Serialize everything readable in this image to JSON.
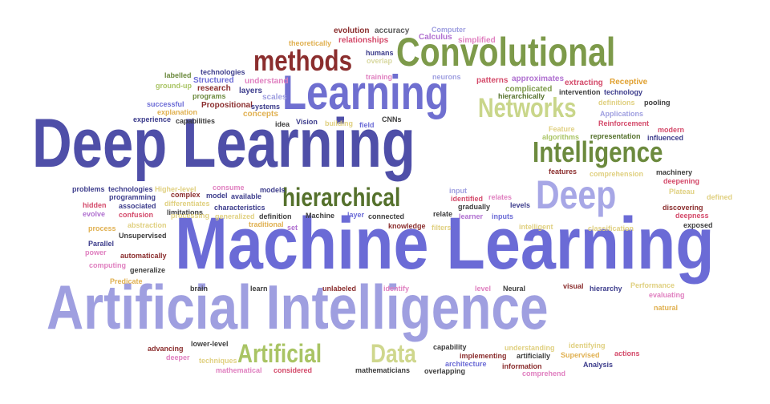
{
  "words": [
    {
      "text": "Machine Learning",
      "color": "#6b6bd6"
    },
    {
      "text": "Deep Learning",
      "color": "#4f4fa8"
    },
    {
      "text": "Artificial Intelligence",
      "color": "#9f9fe0"
    },
    {
      "text": "Convolutional",
      "color": "#7d9a4a"
    },
    {
      "text": "Learning",
      "color": "#6f6fd0"
    },
    {
      "text": "methods",
      "color": "#8b2e2e"
    },
    {
      "text": "Networks",
      "color": "#c9d68a"
    },
    {
      "text": "Intelligence",
      "color": "#6c8a3e"
    },
    {
      "text": "Deep",
      "color": "#a7a7e6"
    },
    {
      "text": "hierarchical",
      "color": "#55712c"
    },
    {
      "text": "Artificial",
      "color": "#a9c464"
    },
    {
      "text": "Data",
      "color": "#cfd78d"
    },
    {
      "text": "evolution",
      "color": "#8b2e2e"
    },
    {
      "text": "accuracy",
      "color": "#5a5a5a"
    },
    {
      "text": "Computer",
      "color": "#9f9fe0"
    },
    {
      "text": "theoretically",
      "color": "#e0b050"
    },
    {
      "text": "relationships",
      "color": "#d44a6a"
    },
    {
      "text": "Calculus",
      "color": "#b070d0"
    },
    {
      "text": "simplified",
      "color": "#e080c0"
    },
    {
      "text": "humans",
      "color": "#3d3d8c"
    },
    {
      "text": "overlap",
      "color": "#d8d8a0"
    },
    {
      "text": "labelled",
      "color": "#6c8a3e"
    },
    {
      "text": "technologies",
      "color": "#3d3d8c"
    },
    {
      "text": "ground-up",
      "color": "#a9c464"
    },
    {
      "text": "Structured",
      "color": "#6b6bd6"
    },
    {
      "text": "research",
      "color": "#8b2e2e"
    },
    {
      "text": "understand",
      "color": "#e080c0"
    },
    {
      "text": "training",
      "color": "#e080c0"
    },
    {
      "text": "neurons",
      "color": "#9f9fe0"
    },
    {
      "text": "patterns",
      "color": "#d44a6a"
    },
    {
      "text": "approximates",
      "color": "#b070d0"
    },
    {
      "text": "extracting",
      "color": "#d44a6a"
    },
    {
      "text": "Receptive",
      "color": "#e0a030"
    },
    {
      "text": "layers",
      "color": "#3d3d8c"
    },
    {
      "text": "programs",
      "color": "#6c8a3e"
    },
    {
      "text": "scales",
      "color": "#9f9fe0"
    },
    {
      "text": "complicated",
      "color": "#7d9a4a"
    },
    {
      "text": "hierarchically",
      "color": "#55712c"
    },
    {
      "text": "intervention",
      "color": "#3d3d3d"
    },
    {
      "text": "technology",
      "color": "#3d3d8c"
    },
    {
      "text": "successful",
      "color": "#6b6bd6"
    },
    {
      "text": "Propositional",
      "color": "#8b2e2e"
    },
    {
      "text": "systems",
      "color": "#3d3d8c"
    },
    {
      "text": "definitions",
      "color": "#e0d080"
    },
    {
      "text": "pooling",
      "color": "#3d3d3d"
    },
    {
      "text": "explanation",
      "color": "#e0b050"
    },
    {
      "text": "concepts",
      "color": "#e0b050"
    },
    {
      "text": "Applications",
      "color": "#9f9fe0"
    },
    {
      "text": "experience",
      "color": "#3d3d8c"
    },
    {
      "text": "capabilities",
      "color": "#3d3d3d"
    },
    {
      "text": "idea",
      "color": "#3d3d3d"
    },
    {
      "text": "Vision",
      "color": "#3d3d8c"
    },
    {
      "text": "building",
      "color": "#e0d080"
    },
    {
      "text": "field",
      "color": "#6b6bd6"
    },
    {
      "text": "CNNs",
      "color": "#3d3d3d"
    },
    {
      "text": "Reinforcement",
      "color": "#d44a6a"
    },
    {
      "text": "modern",
      "color": "#d44a6a"
    },
    {
      "text": "influenced",
      "color": "#3d3d8c"
    },
    {
      "text": "Feature",
      "color": "#e0d080"
    },
    {
      "text": "algorithms",
      "color": "#a9c464"
    },
    {
      "text": "representation",
      "color": "#55712c"
    },
    {
      "text": "features",
      "color": "#8b2e2e"
    },
    {
      "text": "comprehension",
      "color": "#e0d080"
    },
    {
      "text": "machinery",
      "color": "#3d3d3d"
    },
    {
      "text": "deepening",
      "color": "#d44a6a"
    },
    {
      "text": "problems",
      "color": "#3d3d8c"
    },
    {
      "text": "technologies",
      "color": "#3d3d8c"
    },
    {
      "text": "Higher-level",
      "color": "#e0d080"
    },
    {
      "text": "programming",
      "color": "#3d3d8c"
    },
    {
      "text": "consume",
      "color": "#e080c0"
    },
    {
      "text": "models",
      "color": "#3d3d8c"
    },
    {
      "text": "input",
      "color": "#9f9fe0"
    },
    {
      "text": "Plateau",
      "color": "#e0d080"
    },
    {
      "text": "defined",
      "color": "#e0d080"
    },
    {
      "text": "hidden",
      "color": "#d44a6a"
    },
    {
      "text": "associated",
      "color": "#3d3d8c"
    },
    {
      "text": "complex",
      "color": "#8b2e2e"
    },
    {
      "text": "differentiates",
      "color": "#e0d080"
    },
    {
      "text": "model",
      "color": "#3d3d8c"
    },
    {
      "text": "available",
      "color": "#3d3d8c"
    },
    {
      "text": "identified",
      "color": "#d44a6a"
    },
    {
      "text": "relates",
      "color": "#e080c0"
    },
    {
      "text": "levels",
      "color": "#3d3d8c"
    },
    {
      "text": "evolve",
      "color": "#b070d0"
    },
    {
      "text": "confusion",
      "color": "#d44a6a"
    },
    {
      "text": "limitations",
      "color": "#3d3d3d"
    },
    {
      "text": "characteristics",
      "color": "#3d3d8c"
    },
    {
      "text": "gradually",
      "color": "#3d3d3d"
    },
    {
      "text": "discovering",
      "color": "#8b2e2e"
    },
    {
      "text": "processing",
      "color": "#e0d080"
    },
    {
      "text": "generalized",
      "color": "#e0d080"
    },
    {
      "text": "definition",
      "color": "#3d3d3d"
    },
    {
      "text": "Machine",
      "color": "#3d3d3d"
    },
    {
      "text": "layer",
      "color": "#6b6bd6"
    },
    {
      "text": "connected",
      "color": "#3d3d3d"
    },
    {
      "text": "relate",
      "color": "#3d3d3d"
    },
    {
      "text": "learner",
      "color": "#b070d0"
    },
    {
      "text": "inputs",
      "color": "#6b6bd6"
    },
    {
      "text": "deepness",
      "color": "#d44a6a"
    },
    {
      "text": "abstraction",
      "color": "#e0d080"
    },
    {
      "text": "traditional",
      "color": "#e0b050"
    },
    {
      "text": "process",
      "color": "#e0b050"
    },
    {
      "text": "knowledge",
      "color": "#8b2e2e"
    },
    {
      "text": "filters",
      "color": "#e0d080"
    },
    {
      "text": "intelligent",
      "color": "#e0d080"
    },
    {
      "text": "classification",
      "color": "#e0d080"
    },
    {
      "text": "exposed",
      "color": "#3d3d3d"
    },
    {
      "text": "Unsupervised",
      "color": "#3d3d3d"
    },
    {
      "text": "set",
      "color": "#b070d0"
    },
    {
      "text": "Parallel",
      "color": "#3d3d8c"
    },
    {
      "text": "power",
      "color": "#e080c0"
    },
    {
      "text": "automatically",
      "color": "#8b2e2e"
    },
    {
      "text": "computing",
      "color": "#e080c0"
    },
    {
      "text": "generalize",
      "color": "#3d3d3d"
    },
    {
      "text": "Predicate",
      "color": "#e0b050"
    },
    {
      "text": "brain",
      "color": "#3d3d3d"
    },
    {
      "text": "learn",
      "color": "#3d3d3d"
    },
    {
      "text": "unlabeled",
      "color": "#8b2e2e"
    },
    {
      "text": "identify",
      "color": "#e080c0"
    },
    {
      "text": "level",
      "color": "#e080c0"
    },
    {
      "text": "Neural",
      "color": "#3d3d3d"
    },
    {
      "text": "visual",
      "color": "#8b2e2e"
    },
    {
      "text": "hierarchy",
      "color": "#3d3d8c"
    },
    {
      "text": "Performance",
      "color": "#e0d080"
    },
    {
      "text": "evaluating",
      "color": "#e080c0"
    },
    {
      "text": "natural",
      "color": "#e0b050"
    },
    {
      "text": "lower-level",
      "color": "#3d3d3d"
    },
    {
      "text": "advancing",
      "color": "#8b2e2e"
    },
    {
      "text": "deeper",
      "color": "#e080c0"
    },
    {
      "text": "techniques",
      "color": "#e0d080"
    },
    {
      "text": "capability",
      "color": "#3d3d3d"
    },
    {
      "text": "implementing",
      "color": "#8b2e2e"
    },
    {
      "text": "understanding",
      "color": "#e0d080"
    },
    {
      "text": "identifying",
      "color": "#e0d080"
    },
    {
      "text": "artificially",
      "color": "#3d3d3d"
    },
    {
      "text": "Supervised",
      "color": "#e0b050"
    },
    {
      "text": "actions",
      "color": "#d44a6a"
    },
    {
      "text": "architecture",
      "color": "#6b6bd6"
    },
    {
      "text": "information",
      "color": "#8b2e2e"
    },
    {
      "text": "Analysis",
      "color": "#3d3d8c"
    },
    {
      "text": "mathematical",
      "color": "#e080c0"
    },
    {
      "text": "considered",
      "color": "#d44a6a"
    },
    {
      "text": "mathematicians",
      "color": "#3d3d3d"
    },
    {
      "text": "overlapping",
      "color": "#3d3d3d"
    },
    {
      "text": "comprehend",
      "color": "#e080c0"
    }
  ]
}
